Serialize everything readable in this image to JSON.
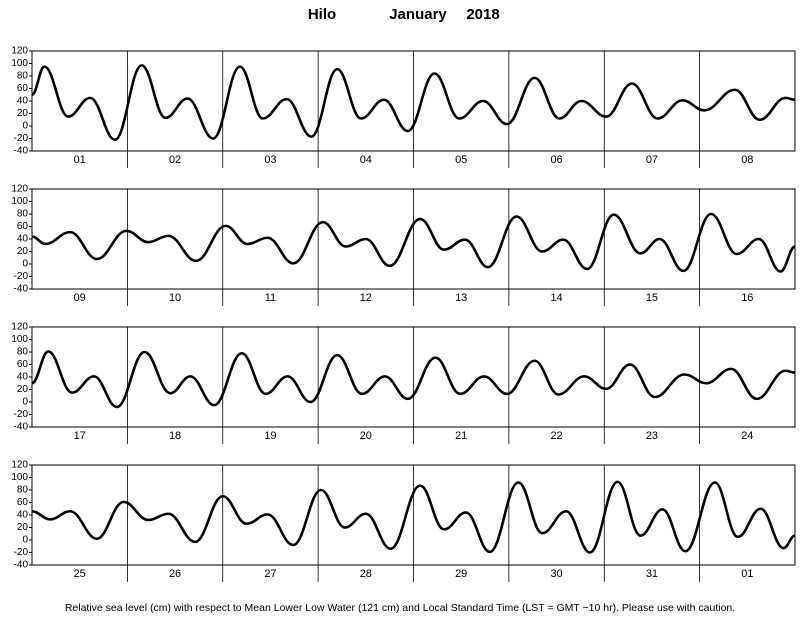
{
  "header": {
    "station": "Hilo",
    "month": "January",
    "year": "2018"
  },
  "footer": "Relative sea level (cm) with respect to Mean Lower Low Water (121 cm) and Local Standard Time (LST = GMT −10 hr). Please use with caution.",
  "chart_data": [
    {
      "type": "line",
      "xlim": [
        0,
        8
      ],
      "ylim": [
        -40,
        120
      ],
      "yticks": [
        -40,
        -20,
        0,
        20,
        40,
        60,
        80,
        100,
        120
      ],
      "xticks": [
        {
          "value": 0.5,
          "label": "01"
        },
        {
          "value": 1.5,
          "label": "02"
        },
        {
          "value": 2.5,
          "label": "03"
        },
        {
          "value": 3.5,
          "label": "04"
        },
        {
          "value": 4.5,
          "label": "05"
        },
        {
          "value": 5.5,
          "label": "06"
        },
        {
          "value": 6.5,
          "label": "07"
        },
        {
          "value": 7.5,
          "label": "08"
        }
      ],
      "x": [
        0,
        0.13,
        0.38,
        0.61,
        0.87,
        1.15,
        1.4,
        1.63,
        1.9,
        2.18,
        2.42,
        2.67,
        2.93,
        3.2,
        3.45,
        3.69,
        3.94,
        4.22,
        4.48,
        4.73,
        4.98,
        5.27,
        5.53,
        5.76,
        6.02,
        6.29,
        6.56,
        6.82,
        7.05,
        7.37,
        7.63,
        7.9,
        8
      ],
      "series": [
        {
          "color": "#000000",
          "values": [
            50,
            95,
            15,
            45,
            -22,
            97,
            13,
            44,
            -20,
            95,
            12,
            43,
            -17,
            91,
            12,
            42,
            -8,
            84,
            12,
            40,
            3,
            77,
            12,
            40,
            15,
            68,
            12,
            41,
            25,
            58,
            10,
            45,
            42
          ]
        }
      ]
    },
    {
      "type": "line",
      "xlim": [
        0,
        8
      ],
      "ylim": [
        -40,
        120
      ],
      "yticks": [
        -40,
        -20,
        0,
        20,
        40,
        60,
        80,
        100,
        120
      ],
      "xticks": [
        {
          "value": 0.5,
          "label": "09"
        },
        {
          "value": 1.5,
          "label": "10"
        },
        {
          "value": 2.5,
          "label": "11"
        },
        {
          "value": 3.5,
          "label": "12"
        },
        {
          "value": 4.5,
          "label": "13"
        },
        {
          "value": 5.5,
          "label": "14"
        },
        {
          "value": 6.5,
          "label": "15"
        },
        {
          "value": 7.5,
          "label": "16"
        }
      ],
      "x": [
        0,
        0.14,
        0.4,
        0.68,
        0.99,
        1.22,
        1.43,
        1.72,
        2.03,
        2.26,
        2.47,
        2.74,
        3.05,
        3.29,
        3.5,
        3.75,
        4.07,
        4.32,
        4.54,
        4.78,
        5.08,
        5.35,
        5.57,
        5.82,
        6.1,
        6.38,
        6.58,
        6.83,
        7.12,
        7.39,
        7.62,
        7.85,
        8
      ],
      "series": [
        {
          "color": "#000000",
          "values": [
            44,
            32,
            51,
            8,
            53,
            35,
            45,
            5,
            61,
            32,
            42,
            1,
            67,
            28,
            40,
            -3,
            72,
            23,
            39,
            -5,
            76,
            20,
            39,
            -8,
            79,
            17,
            40,
            -11,
            80,
            16,
            40,
            -12,
            28
          ]
        }
      ]
    },
    {
      "type": "line",
      "xlim": [
        0,
        8
      ],
      "ylim": [
        -40,
        120
      ],
      "yticks": [
        -40,
        -20,
        0,
        20,
        40,
        60,
        80,
        100,
        120
      ],
      "xticks": [
        {
          "value": 0.5,
          "label": "17"
        },
        {
          "value": 1.5,
          "label": "18"
        },
        {
          "value": 2.5,
          "label": "19"
        },
        {
          "value": 3.5,
          "label": "20"
        },
        {
          "value": 4.5,
          "label": "21"
        },
        {
          "value": 5.5,
          "label": "22"
        },
        {
          "value": 6.5,
          "label": "23"
        },
        {
          "value": 7.5,
          "label": "24"
        }
      ],
      "x": [
        0,
        0.17,
        0.42,
        0.65,
        0.89,
        1.18,
        1.45,
        1.66,
        1.91,
        2.2,
        2.45,
        2.68,
        2.92,
        3.2,
        3.46,
        3.7,
        3.94,
        4.23,
        4.49,
        4.74,
        4.98,
        5.27,
        5.52,
        5.79,
        6.02,
        6.27,
        6.53,
        6.84,
        7.07,
        7.33,
        7.6,
        7.9,
        8
      ],
      "series": [
        {
          "color": "#000000",
          "values": [
            30,
            81,
            15,
            41,
            -8,
            80,
            14,
            41,
            -5,
            78,
            13,
            41,
            0,
            75,
            13,
            41,
            5,
            71,
            13,
            41,
            13,
            66,
            12,
            41,
            21,
            60,
            8,
            44,
            30,
            53,
            5,
            50,
            47
          ]
        }
      ]
    },
    {
      "type": "line",
      "xlim": [
        0,
        8
      ],
      "ylim": [
        -40,
        120
      ],
      "yticks": [
        -40,
        -20,
        0,
        20,
        40,
        60,
        80,
        100,
        120
      ],
      "xticks": [
        {
          "value": 0.5,
          "label": "25"
        },
        {
          "value": 1.5,
          "label": "26"
        },
        {
          "value": 2.5,
          "label": "27"
        },
        {
          "value": 3.5,
          "label": "28"
        },
        {
          "value": 4.5,
          "label": "29"
        },
        {
          "value": 5.5,
          "label": "30"
        },
        {
          "value": 6.5,
          "label": "31"
        },
        {
          "value": 7.5,
          "label": "01"
        }
      ],
      "x": [
        0,
        0.19,
        0.4,
        0.68,
        0.96,
        1.22,
        1.43,
        1.71,
        2.0,
        2.25,
        2.47,
        2.74,
        3.03,
        3.28,
        3.5,
        3.76,
        4.07,
        4.32,
        4.55,
        4.8,
        5.1,
        5.35,
        5.6,
        5.85,
        6.14,
        6.38,
        6.61,
        6.85,
        7.16,
        7.4,
        7.64,
        7.88,
        8
      ],
      "series": [
        {
          "color": "#000000",
          "values": [
            46,
            33,
            46,
            2,
            61,
            32,
            42,
            -3,
            70,
            26,
            41,
            -8,
            80,
            20,
            42,
            -14,
            87,
            17,
            44,
            -19,
            92,
            11,
            46,
            -20,
            93,
            7,
            49,
            -18,
            92,
            5,
            50,
            -13,
            7
          ]
        }
      ]
    }
  ]
}
